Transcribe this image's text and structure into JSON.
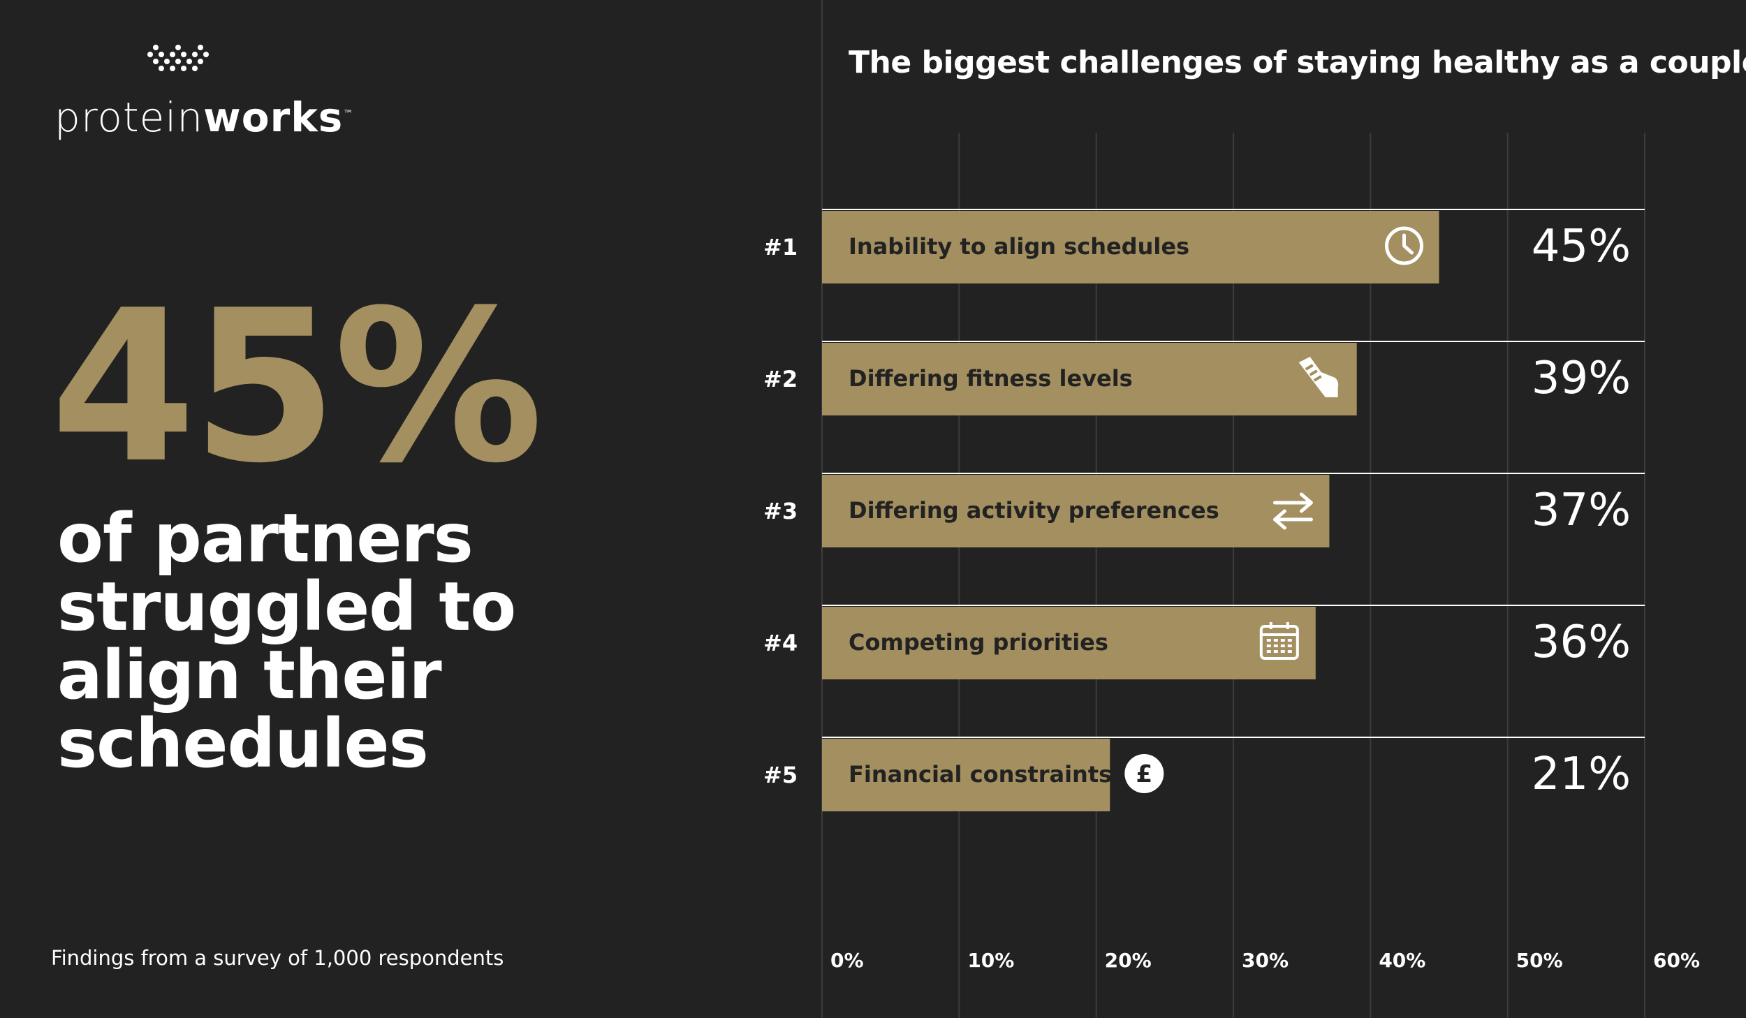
{
  "brand": {
    "name_light": "protein",
    "name_bold": "works",
    "trademark": "™"
  },
  "headline": {
    "number": "45%",
    "text": "of partners struggled to align their schedules"
  },
  "footnote": "Findings from a survey of 1,000 respondents",
  "colors": {
    "background": "#222222",
    "accent": "#a38f5f",
    "text": "#ffffff",
    "bar_text": "#222222"
  },
  "chart_data": {
    "type": "bar",
    "orientation": "horizontal",
    "title": "The biggest challenges of staying healthy as a couple",
    "xlim": [
      0,
      60
    ],
    "x_ticks": [
      "0%",
      "10%",
      "20%",
      "30%",
      "40%",
      "50%",
      "60%"
    ],
    "grid": true,
    "bars": [
      {
        "rank": "#1",
        "label": "Inability to align schedules",
        "value": 45,
        "value_label": "45%",
        "icon": "clock-icon"
      },
      {
        "rank": "#2",
        "label": "Differing fitness levels",
        "value": 39,
        "value_label": "39%",
        "icon": "sneaker-icon"
      },
      {
        "rank": "#3",
        "label": "Differing activity preferences",
        "value": 37,
        "value_label": "37%",
        "icon": "swap-arrows-icon"
      },
      {
        "rank": "#4",
        "label": "Competing priorities",
        "value": 36,
        "value_label": "36%",
        "icon": "calendar-icon"
      },
      {
        "rank": "#5",
        "label": "Financial constraints",
        "value": 21,
        "value_label": "21%",
        "icon": "pound-icon"
      }
    ]
  }
}
